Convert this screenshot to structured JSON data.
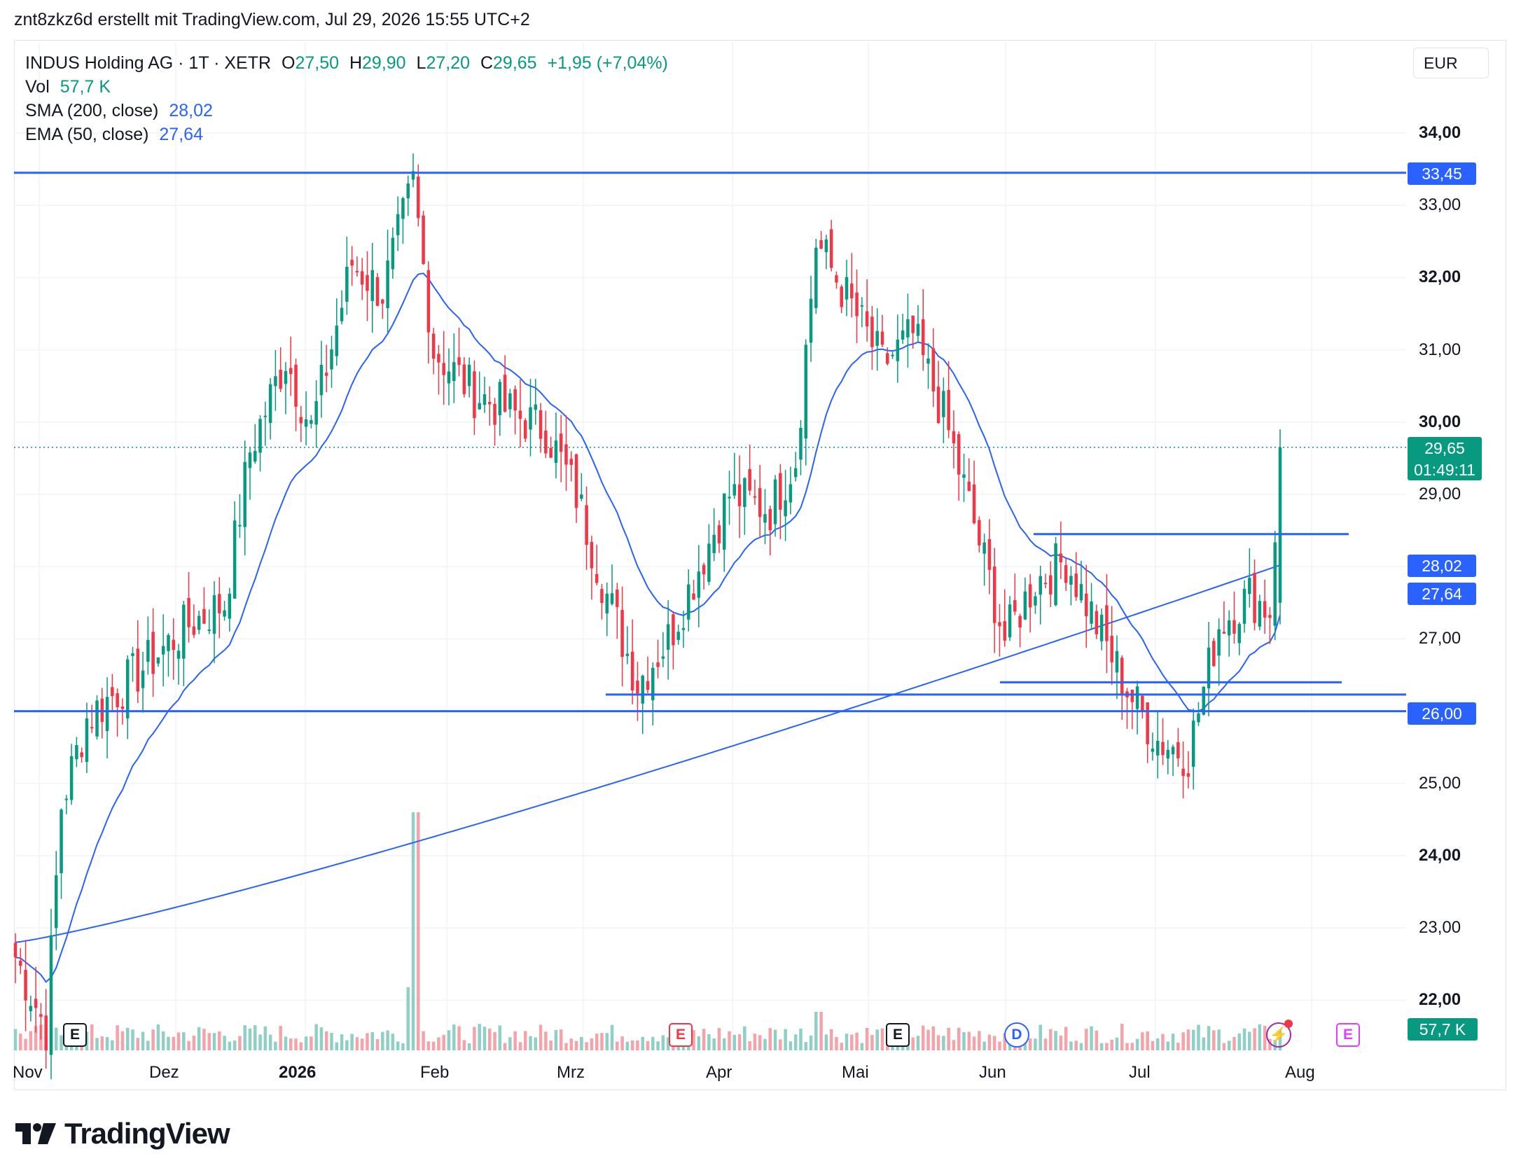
{
  "header": {
    "text": "znt8zkz6d erstellt mit TradingView.com, Jul 29, 2026 15:55 UTC+2"
  },
  "legend": {
    "symbol": "INDUS Holding AG · 1T · XETR",
    "o_label": "O",
    "o_value": "27,50",
    "h_label": "H",
    "h_value": "29,90",
    "l_label": "L",
    "l_value": "27,20",
    "c_label": "C",
    "c_value": "29,65",
    "change": "+1,95 (+7,04%)",
    "vol_label": "Vol",
    "vol_value": "57,7 K",
    "sma_label": "SMA (200, close)",
    "sma_value": "28,02",
    "ema_label": "EMA (50, close)",
    "ema_value": "27,64"
  },
  "currency": "EUR",
  "price_axis": {
    "ticks": [
      "34,00",
      "33,00",
      "32,00",
      "31,00",
      "30,00",
      "29,00",
      "28,00",
      "27,00",
      "26,00",
      "25,00",
      "24,00",
      "23,00",
      "22,00"
    ],
    "bold_ticks": [
      "34,00",
      "32,00",
      "30,00",
      "26,00",
      "24,00",
      "22,00"
    ]
  },
  "tags": {
    "resistance": "33,45",
    "last_price": "29,65",
    "countdown": "01:49:11",
    "sma": "28,02",
    "ema": "27,64",
    "support": "26,00",
    "volume": "57,7 K"
  },
  "time_axis": [
    {
      "label": "Nov",
      "bold": false
    },
    {
      "label": "Dez",
      "bold": false
    },
    {
      "label": "2026",
      "bold": true
    },
    {
      "label": "Feb",
      "bold": false
    },
    {
      "label": "Mrz",
      "bold": false
    },
    {
      "label": "Apr",
      "bold": false
    },
    {
      "label": "Mai",
      "bold": false
    },
    {
      "label": "Jun",
      "bold": false
    },
    {
      "label": "Jul",
      "bold": false
    },
    {
      "label": "Aug",
      "bold": false
    }
  ],
  "events": {
    "earnings": "E",
    "dividend": "D"
  },
  "brand": {
    "name": "TradingView"
  },
  "colors": {
    "up": "#089981",
    "down": "#f23645",
    "line_blue": "#2962ff",
    "ma_blue": "#2962ff",
    "vol_up": "#8fcfc5",
    "vol_down": "#f5a3a9"
  },
  "chart_data": {
    "type": "candlestick",
    "symbol": "INDUS Holding AG",
    "interval": "1T",
    "exchange": "XETR",
    "ylim": [
      21.3,
      34.6
    ],
    "grid": true,
    "horizontal_lines": [
      33.45,
      26.0,
      26.23,
      26.4,
      28.45
    ],
    "key_points": [
      {
        "date": "Nov",
        "close": 22.6
      },
      {
        "date": "Nov (Mitte)",
        "close": 25.9
      },
      {
        "date": "Dez",
        "close": 26.5
      },
      {
        "date": "Jan",
        "close": 29.6
      },
      {
        "date": "Feb",
        "close": 33.3
      },
      {
        "date": "Mrz",
        "close": 30.0
      },
      {
        "date": "Apr",
        "close": 26.9
      },
      {
        "date": "Mai",
        "close": 32.5
      },
      {
        "date": "Jun",
        "close": 27.0
      },
      {
        "date": "Jul",
        "close": 25.3
      },
      {
        "date": "Jul 29",
        "close": 29.65
      }
    ],
    "last_bar": {
      "open": 27.5,
      "high": 29.9,
      "low": 27.2,
      "close": 29.65
    },
    "sma200_last": 28.02,
    "ema50_last": 27.64,
    "volume_last": "57,7 K"
  }
}
